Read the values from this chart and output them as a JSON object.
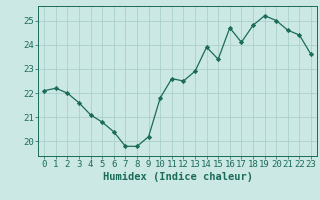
{
  "x": [
    0,
    1,
    2,
    3,
    4,
    5,
    6,
    7,
    8,
    9,
    10,
    11,
    12,
    13,
    14,
    15,
    16,
    17,
    18,
    19,
    20,
    21,
    22,
    23
  ],
  "y": [
    22.1,
    22.2,
    22.0,
    21.6,
    21.1,
    20.8,
    20.4,
    19.8,
    19.8,
    20.2,
    21.8,
    22.6,
    22.5,
    22.9,
    23.9,
    23.4,
    24.7,
    24.1,
    24.8,
    25.2,
    25.0,
    24.6,
    24.4,
    23.6
  ],
  "line_color": "#1a6b5a",
  "marker": "D",
  "marker_size": 2.2,
  "bg_color": "#cce8e4",
  "grid_color": "#aacfca",
  "tick_color": "#1a6b5a",
  "xlabel": "Humidex (Indice chaleur)",
  "xlabel_fontsize": 7.5,
  "tick_fontsize": 6.5,
  "yticks": [
    20,
    21,
    22,
    23,
    24,
    25
  ],
  "xticks": [
    0,
    1,
    2,
    3,
    4,
    5,
    6,
    7,
    8,
    9,
    10,
    11,
    12,
    13,
    14,
    15,
    16,
    17,
    18,
    19,
    20,
    21,
    22,
    23
  ],
  "ylim": [
    19.4,
    25.6
  ],
  "xlim": [
    -0.5,
    23.5
  ]
}
